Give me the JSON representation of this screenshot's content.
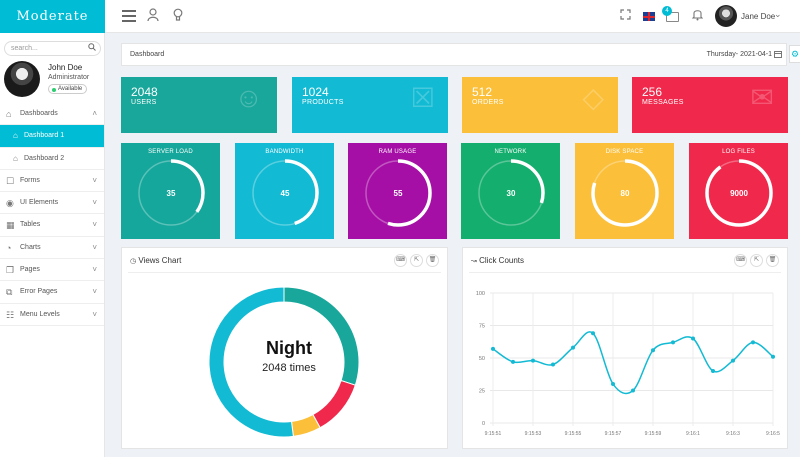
{
  "brand": "Moderate",
  "header": {
    "user_name": "Jane Doe",
    "mail_count": "4"
  },
  "sidebar": {
    "search_placeholder": "search...",
    "profile": {
      "name": "John Doe",
      "role": "Administrator",
      "status": "Available"
    },
    "items": [
      {
        "label": "Dashboards",
        "icon": "home-icon",
        "open": true
      },
      {
        "label": "Dashboard 1",
        "icon": "home-icon",
        "sub": true,
        "active": true
      },
      {
        "label": "Dashboard 2",
        "icon": "home-icon",
        "sub": true
      },
      {
        "label": "Forms",
        "icon": "forms-icon"
      },
      {
        "label": "UI Elements",
        "icon": "eye-icon"
      },
      {
        "label": "Tables",
        "icon": "table-icon"
      },
      {
        "label": "Charts",
        "icon": "pie-icon"
      },
      {
        "label": "Pages",
        "icon": "layers-icon"
      },
      {
        "label": "Error Pages",
        "icon": "error-icon"
      },
      {
        "label": "Menu Levels",
        "icon": "sitemap-icon"
      }
    ]
  },
  "breadcrumb": {
    "title": "Dashboard",
    "date": "Thursday- 2021-04-1"
  },
  "stats": [
    {
      "value": "2048",
      "label": "USERS",
      "color": "#19a79b",
      "icon": "users-icon"
    },
    {
      "value": "1024",
      "label": "PRODUCTS",
      "color": "#12bad3",
      "icon": "gift-icon"
    },
    {
      "value": "512",
      "label": "ORDERS",
      "color": "#fbbf3a",
      "icon": "diamond-icon"
    },
    {
      "value": "256",
      "label": "MESSAGES",
      "color": "#f0284b",
      "icon": "chat-icon"
    }
  ],
  "gauges": [
    {
      "label": "SERVER LOAD",
      "value": "35",
      "fraction": 0.35,
      "color": "#15a79b"
    },
    {
      "label": "BANDWIDTH",
      "value": "45",
      "fraction": 0.45,
      "color": "#12bad3"
    },
    {
      "label": "RAM USAGE",
      "value": "55",
      "fraction": 0.55,
      "color": "#a60fa6"
    },
    {
      "label": "NETWORK",
      "value": "30",
      "fraction": 0.3,
      "color": "#14ae6e"
    },
    {
      "label": "DISK SPACE",
      "value": "80",
      "fraction": 0.8,
      "color": "#fbbf3a"
    },
    {
      "label": "LOG FILES",
      "value": "9000",
      "fraction": 0.9,
      "color": "#f0284b"
    }
  ],
  "views_panel": {
    "title": "Views Chart",
    "center_label": "Night",
    "center_value": "2048 times"
  },
  "clicks_panel": {
    "title": "Click Counts"
  },
  "chart_data": [
    {
      "type": "pie",
      "title": "Views Chart",
      "slices": [
        {
          "value": 30,
          "color": "#19a79b"
        },
        {
          "value": 12,
          "color": "#f0284b"
        },
        {
          "value": 6,
          "color": "#fbbf3a"
        },
        {
          "value": 52,
          "color": "#12bad3"
        }
      ]
    },
    {
      "type": "line",
      "title": "Click Counts",
      "x": [
        "9:15:51",
        "9:15:52",
        "9:15:53",
        "9:15:54",
        "9:15:55",
        "9:15:56",
        "9:15:57",
        "9:15:58",
        "9:15:59",
        "9:16:0",
        "9:16:1",
        "9:16:2",
        "9:16:3",
        "9:16:4",
        "9:16:5"
      ],
      "x_labels": [
        "9:15:51",
        "9:15:53",
        "9:15:55",
        "9:15:57",
        "9:15:59",
        "9:16:1",
        "9:16:3",
        "9:16:5"
      ],
      "series": [
        {
          "values": [
            57,
            47,
            48,
            45,
            58,
            69,
            30,
            25,
            56,
            62,
            65,
            40,
            48,
            62,
            51
          ],
          "color": "#12bad3"
        }
      ],
      "yticks": [
        0,
        25,
        50,
        75,
        100
      ],
      "ylim": [
        0,
        100
      ],
      "grid": true
    }
  ]
}
